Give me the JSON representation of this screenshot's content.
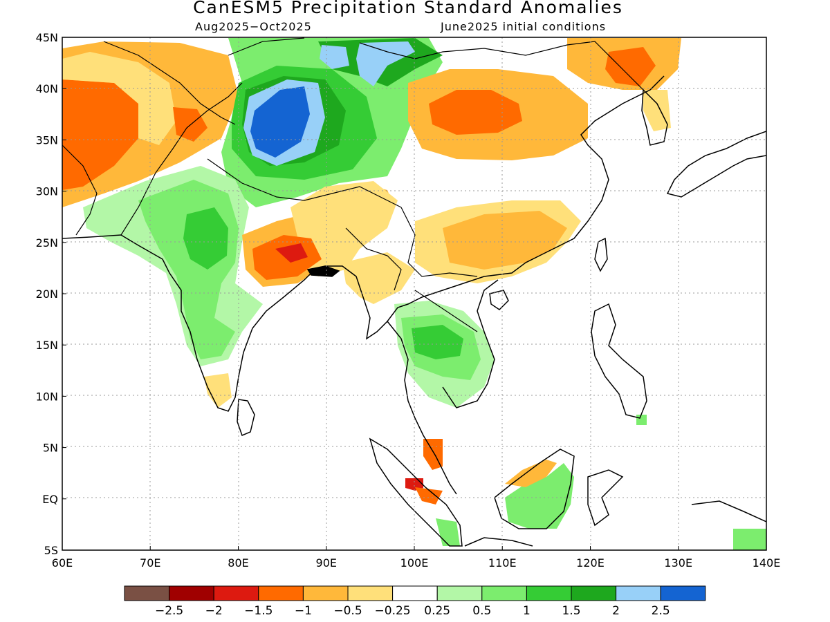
{
  "title": "CanESM5 Precipitation Standard Anomalies",
  "subtitle_left": "Aug2025−Oct2025",
  "subtitle_right": "June2025 initial conditions",
  "lat_labels": [
    "45N",
    "40N",
    "35N",
    "30N",
    "25N",
    "20N",
    "15N",
    "10N",
    "5N",
    "EQ",
    "5S"
  ],
  "lon_labels": [
    "60E",
    "70E",
    "80E",
    "90E",
    "100E",
    "110E",
    "120E",
    "130E",
    "140E"
  ],
  "colorbar": {
    "colors": [
      "#7a5044",
      "#a00000",
      "#dd1a10",
      "#ff6a00",
      "#ffb83a",
      "#ffe07a",
      "#ffffff",
      "#b3f7a7",
      "#7ced6e",
      "#35cc35",
      "#1ea81e",
      "#98d0f8",
      "#1464d2"
    ],
    "labels": [
      "−2.5",
      "−2",
      "−1.5",
      "−1",
      "−0.5",
      "−0.25",
      "0.25",
      "0.5",
      "1",
      "1.5",
      "2",
      "2.5"
    ]
  }
}
